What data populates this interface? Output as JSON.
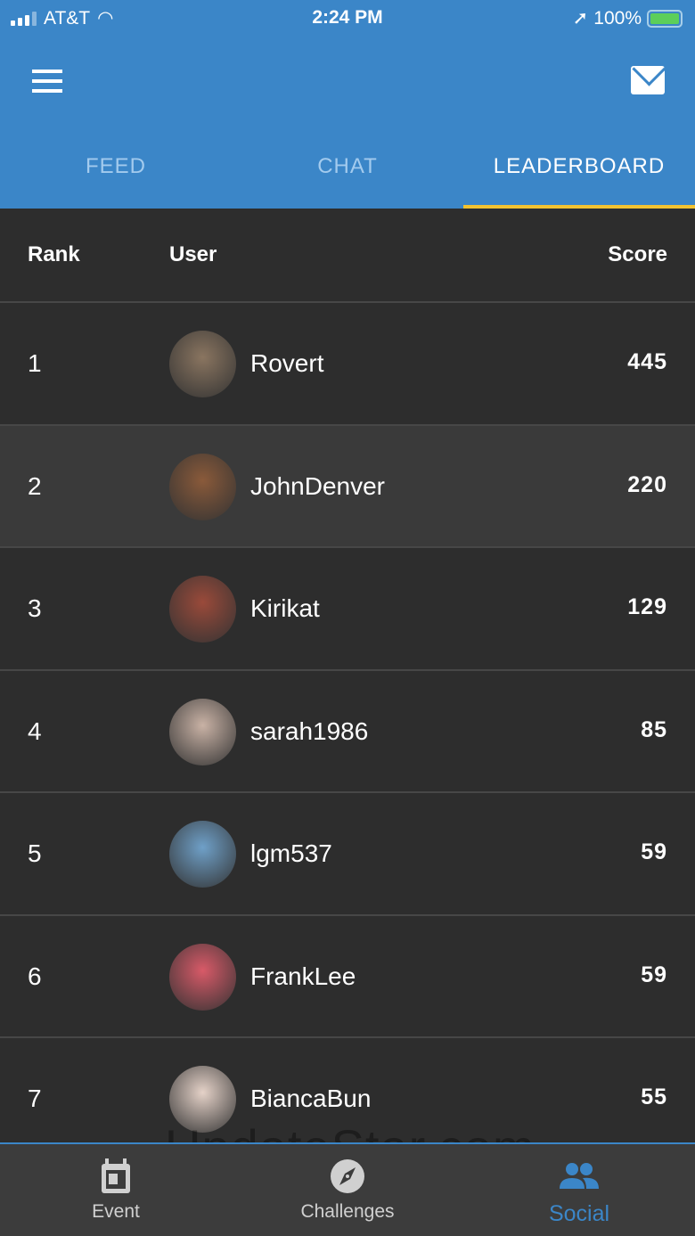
{
  "status_bar": {
    "carrier": "AT&T",
    "time": "2:24 PM",
    "battery": "100%"
  },
  "header": {
    "menu_icon": "hamburger-icon",
    "mail_icon": "envelope-icon"
  },
  "tabs": [
    {
      "label": "FEED",
      "active": false
    },
    {
      "label": "CHAT",
      "active": false
    },
    {
      "label": "LEADERBOARD",
      "active": true
    }
  ],
  "table": {
    "columns": {
      "rank": "Rank",
      "user": "User",
      "score": "Score"
    },
    "rows": [
      {
        "rank": "1",
        "user": "Rovert",
        "score": "445",
        "avatar": "#8a7560"
      },
      {
        "rank": "2",
        "user": "JohnDenver",
        "score": "220",
        "avatar": "#8a5a3a"
      },
      {
        "rank": "3",
        "user": "Kirikat",
        "score": "129",
        "avatar": "#9a4a3a"
      },
      {
        "rank": "4",
        "user": "sarah1986",
        "score": "85",
        "avatar": "#c9b2a5"
      },
      {
        "rank": "5",
        "user": "lgm537",
        "score": "59",
        "avatar": "#6fa0c8"
      },
      {
        "rank": "6",
        "user": "FrankLee",
        "score": "59",
        "avatar": "#d85a68"
      },
      {
        "rank": "7",
        "user": "BiancaBun",
        "score": "55",
        "avatar": "#e5d2c8"
      }
    ]
  },
  "watermark": "UpdateStar.com",
  "bottom_nav": [
    {
      "label": "Event",
      "icon": "calendar-icon"
    },
    {
      "label": "Challenges",
      "icon": "compass-icon"
    },
    {
      "label": "Social",
      "icon": "people-icon",
      "active": true
    }
  ],
  "colors": {
    "header": "#3b86c8",
    "accent": "#f2c230",
    "background": "#2d2d2d"
  }
}
